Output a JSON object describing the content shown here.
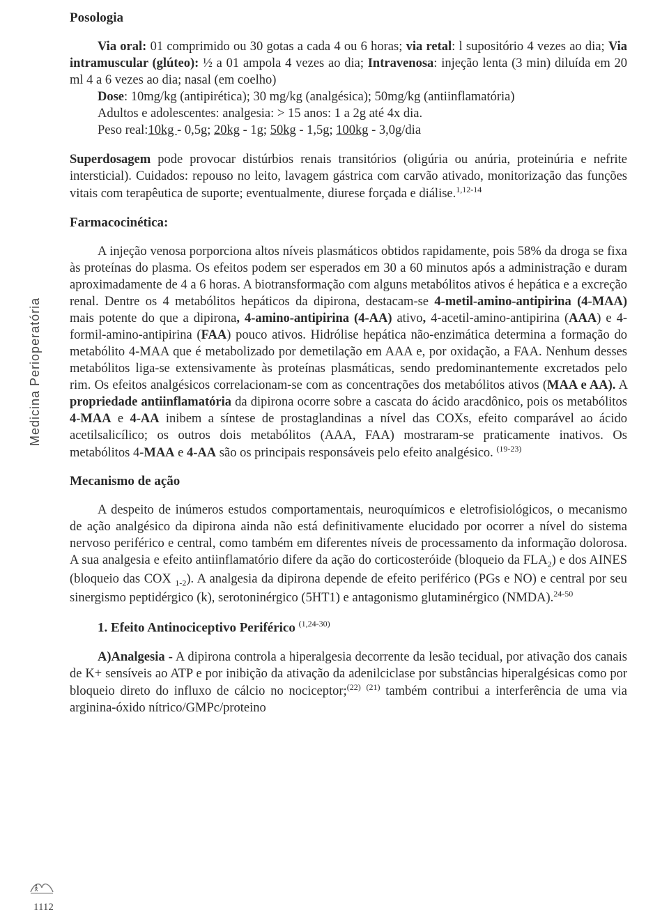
{
  "sideLabel": "Medicina Perioperatória",
  "pageNumber": "1112",
  "sections": {
    "posologia": {
      "title": "Posologia",
      "p1_html": "<span class='indent'></span><span class='b'>Via oral:</span> 01 comprimido  ou 30 gotas a cada 4 ou 6 horas; <span class='b'>via retal</span>: l supositório 4 vezes ao dia; <span class='b'>Via intramuscular (glúteo):</span> ½ a 01 ampola  4 vezes ao dia; <span class='b'>Intravenosa</span>: injeção lenta (3 min) diluída em 20 ml 4 a 6 vezes ao dia; nasal (em coelho)",
      "p2_html": "<span class='indent'></span><span class='b'>Dose</span>: 10mg/kg (antipirética);  30 mg/kg (analgésica); 50mg/kg (antiinflamatória)",
      "p3_html": "<span class='indent'></span>Adultos e adolescentes: analgesia:   &gt; 15 anos: 1 a 2g até 4x dia.",
      "p4_html": "<span class='indent'></span>Peso real:<span class='u'>10kg </span> -  0,5g;   <span class='u'>20kg</span> -  1g;     <span class='u'>50kg</span> -  1,5g;       <span class='u'>100kg</span> -  3,0g/dia",
      "p5_html": "<span class='b'>Superdosagem</span> pode provocar distúrbios renais transitórios (oligúria ou anúria, proteinúria e nefrite intersticial). Cuidados: repouso no leito, lavagem gástrica com carvão ativado,  monitorização das funções vitais com terapêutica de suporte; eventualmente, diurese forçada e diálise.<span class='sup'>1,12-14</span>"
    },
    "farmacocinetica": {
      "title": "Farmacocinética:",
      "p1_html": "<span class='indent'></span>A injeção venosa porporciona altos níveis plasmáticos  obtidos rapidamente, pois 58% da droga se fixa às proteínas do plasma. Os efeitos  podem ser esperados em 30 a 60 minutos após a administração e duram aproximadamente de 4 a 6 horas. A biotransformação com alguns metabólitos ativos é hepática e a excreção renal. Dentre os 4 metabólitos hepáticos da dipirona, destacam-se <span class='b'>4-metil-amino-antipirina (4-MAA)</span> mais potente do que a dipirona<span class='b'>, 4-amino-antipirina (4-AA)</span> ativo<span class='b'>,</span> 4-acetil-amino-antipirina (<span class='b'>AAA</span>) e 4-formil-amino-antipirina (<span class='b'>FAA</span>) pouco ativos. Hidrólise hepática não-enzimática determina a formação do metabólito 4-MAA que é  metabolizado  por demetilação em AAA e, por oxidação, a FAA. Nenhum desses metabólitos liga-se extensivamente às proteínas plasmáticas, sendo predominantemente excretados pelo rim. Os efeitos analgésicos correlacionam-se com as concentrações dos metabólitos ativos (<span class='b'>MAA e AA).</span> A <span class='b'>propriedade antiinflamatória</span>  da dipirona ocorre sobre a cascata do ácido aracdônico, pois os metabólitos <span class='b'>4-MAA</span> e <span class='b'>4-AA</span> inibem a síntese de prostaglandinas  a nível das COXs, efeito comparável ao ácido acetilsalicílico; os outros dois metabólitos (AAA, FAA) mostraram-se praticamente inativos. Os metabólitos 4-<span class='b'>MAA</span> e <span class='b'>4-AA</span> são os principais responsáveis pelo efeito analgésico. <span class='sup'>(19-23)</span>"
    },
    "mecanismo": {
      "title": "Mecanismo de ação",
      "p1_html": "<span class='indent'></span>A despeito de inúmeros estudos comportamentais, neuroquímicos e eletrofisiológicos, o mecanismo de ação  analgésico da dipirona ainda não está definitivamente elucidado por ocorrer a nível do sistema nervoso periférico e central, como também em diferentes níveis de processamento da informação dolorosa. A sua analgesia e efeito antiinflamatório difere da  ação do corticosteróide (bloqueio da FLA<span class='sub'>2</span>) e  dos AINES  (bloqueio das COX <span class='sub'>1-2</span>). A analgesia da dipirona depende de efeito periférico (PGs e NO) e central por seu sinergismo peptidérgico (k), serotoninérgico (5HT1) e antagonismo glutaminérgico (NMDA).<span class='sup'>24-50</span>"
    },
    "efeito1": {
      "title_html": "1. Efeito Antinociceptivo Periférico <span class='sup' style='font-weight:normal'>(1,24-30)</span>",
      "p1_html": "<span class='indent'></span><span class='b'>A)Analgesia -</span> A dipirona controla a hiperalgesia decorrente da lesão tecidual, por ativação dos canais de K+ sensíveis ao ATP e por inibição da ativação da adenilciclase por substâncias hiperalgésicas como por bloqueio direto do influxo de cálcio no nociceptor;<span class='sup'>(22)</span> <span class='sup'>(21)</span> também contribui a interferência de uma via arginina-óxido nítrico/GMPc/proteino"
    }
  }
}
